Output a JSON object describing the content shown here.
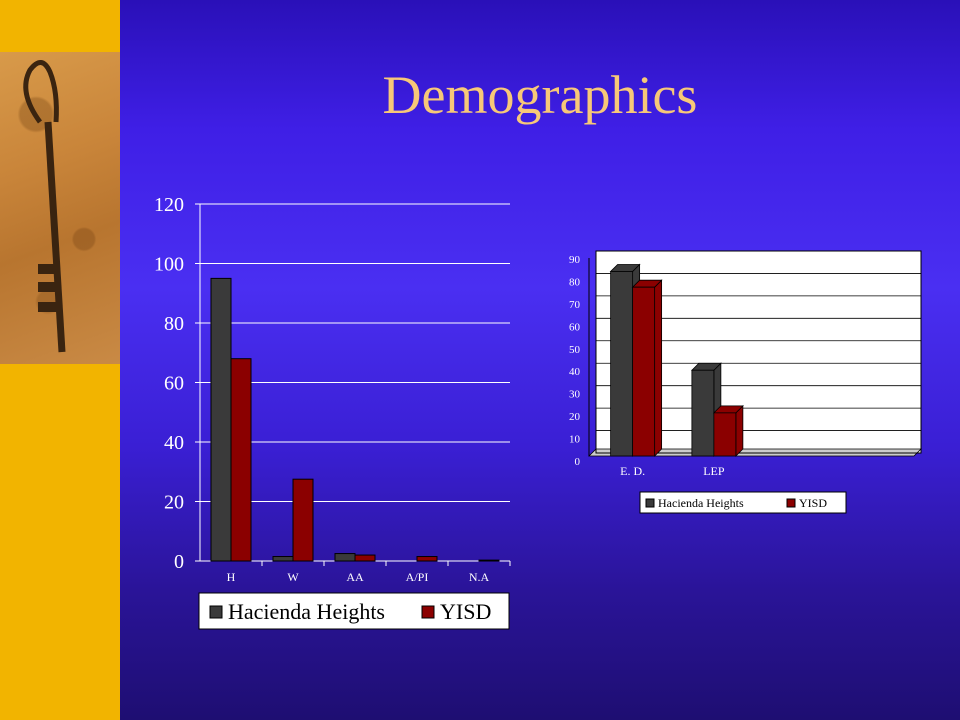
{
  "slide": {
    "title": "Demographics"
  },
  "colors": {
    "sidebar": "#f2b400",
    "title_text": "#f7c878",
    "series_hacienda": "#3a3a3a",
    "series_yisd": "#8b0000"
  },
  "chart_data": [
    {
      "type": "bar",
      "categories": [
        "H",
        "W",
        "AA",
        "A/PI",
        "N.A"
      ],
      "series": [
        {
          "name": "Hacienda Heights",
          "values": [
            95,
            1.5,
            2.5,
            0,
            0
          ]
        },
        {
          "name": "YISD",
          "values": [
            68,
            27.5,
            2,
            1.5,
            0.3
          ]
        }
      ],
      "ylim": [
        0,
        120
      ],
      "yticks": [
        "0",
        "20",
        "40",
        "60",
        "80",
        "100",
        "120"
      ],
      "grid": true,
      "legend": "bottom"
    },
    {
      "type": "bar",
      "categories": [
        "E. D.",
        "LEP",
        "",
        ""
      ],
      "series": [
        {
          "name": "Hacienda Heights",
          "values": [
            84,
            40,
            0,
            0
          ]
        },
        {
          "name": "YISD",
          "values": [
            77,
            21,
            0,
            0
          ]
        }
      ],
      "ylim": [
        0,
        90
      ],
      "yticks": [
        "0",
        "10",
        "20",
        "30",
        "40",
        "50",
        "60",
        "70",
        "80",
        "90"
      ],
      "grid": true,
      "legend": "bottom",
      "style": "3d"
    }
  ]
}
